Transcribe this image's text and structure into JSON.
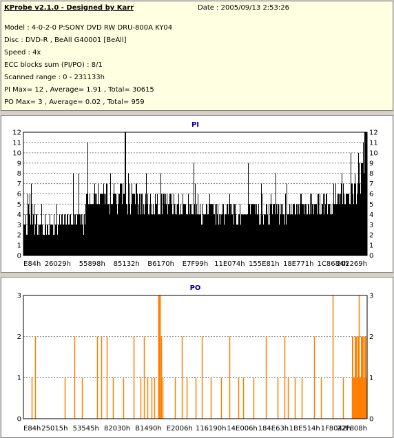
{
  "info": {
    "title": "KProbe v2.1.0 - Designed by Karr",
    "date": "Date : 2005/09/13 2:53:26",
    "lines": [
      "Model : 4-0-2-0 P:SONY    DVD RW DRU-800A  KY04",
      "Disc : DVD-R , BeAll G40001 [BeAll]",
      "Speed : 4x",
      "ECC blocks sum (PI/PO) : 8/1",
      "Scanned range : 0 - 231133h",
      "PI Max= 12 , Average= 1.91 , Total= 30615",
      "PO Max= 3 , Average= 0.02 , Total= 959"
    ]
  },
  "colors": {
    "pi": "#000000",
    "po": "#ff7f00",
    "grid": "#7f7f7f",
    "title": "#000080"
  },
  "chart_data": [
    {
      "type": "bar",
      "title": "PI",
      "ylim": [
        0,
        12
      ],
      "yticks": [
        0,
        1,
        2,
        3,
        4,
        5,
        6,
        7,
        8,
        9,
        10,
        11,
        12
      ],
      "xticks": [
        "E84h",
        "26029h",
        "55898h",
        "85132h",
        "B6170h",
        "E7F99h",
        "11E074h",
        "155E81h",
        "18E771h",
        "1C8684h",
        "202269h"
      ],
      "max": 12,
      "average": 1.91,
      "grid": true
    },
    {
      "type": "bar",
      "title": "PO",
      "ylim": [
        0,
        3
      ],
      "yticks": [
        0,
        1,
        2,
        3
      ],
      "xticks": [
        "E84h",
        "25015h",
        "53545h",
        "82030h",
        "B1490h",
        "E2006h",
        "116190h",
        "14E006h",
        "184E63h",
        "1BE514h",
        "1F8042h",
        "22F808h"
      ],
      "max": 3,
      "average": 0.02,
      "grid": true
    }
  ]
}
